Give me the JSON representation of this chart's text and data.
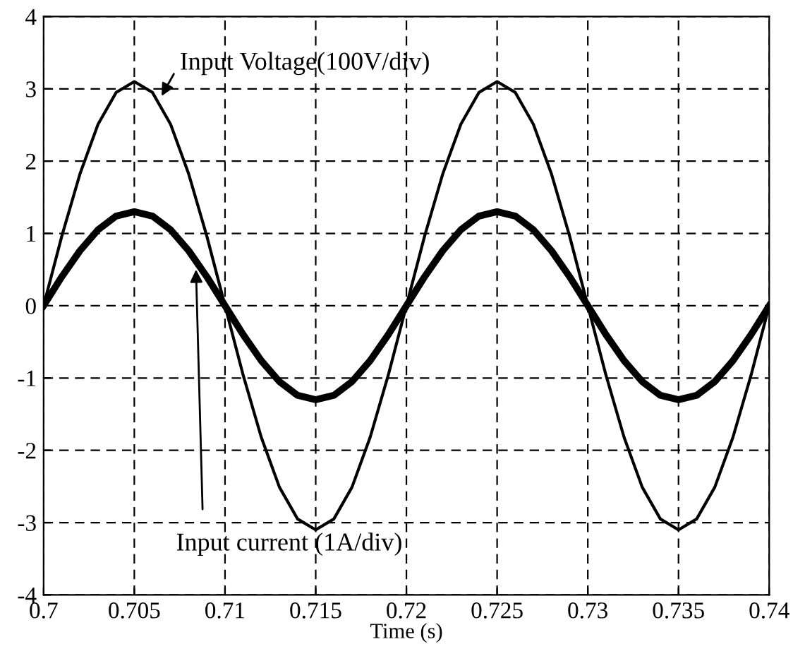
{
  "chart_data": {
    "type": "line",
    "x": [
      0.7,
      0.701,
      0.702,
      0.703,
      0.704,
      0.705,
      0.706,
      0.707,
      0.708,
      0.709,
      0.71,
      0.711,
      0.712,
      0.713,
      0.714,
      0.715,
      0.716,
      0.717,
      0.718,
      0.719,
      0.72,
      0.721,
      0.722,
      0.723,
      0.724,
      0.725,
      0.726,
      0.727,
      0.728,
      0.729,
      0.73,
      0.731,
      0.732,
      0.733,
      0.734,
      0.735,
      0.736,
      0.737,
      0.738,
      0.739,
      0.74
    ],
    "series": [
      {
        "color": "#000000",
        "values": [
          0,
          0.96,
          1.82,
          2.51,
          2.95,
          3.1,
          2.95,
          2.51,
          1.82,
          0.96,
          0,
          -0.96,
          -1.82,
          -2.51,
          -2.95,
          -3.1,
          -2.95,
          -2.51,
          -1.82,
          -0.96,
          0,
          0.96,
          1.82,
          2.51,
          2.95,
          3.1,
          2.95,
          2.51,
          1.82,
          0.96,
          0,
          -0.96,
          -1.82,
          -2.51,
          -2.95,
          -3.1,
          -2.95,
          -2.51,
          -1.82,
          -0.96,
          0
        ]
      },
      {
        "color": "#000000",
        "values": [
          0,
          0.4,
          0.76,
          1.05,
          1.24,
          1.3,
          1.24,
          1.05,
          0.76,
          0.4,
          0,
          -0.4,
          -0.76,
          -1.05,
          -1.24,
          -1.3,
          -1.24,
          -1.05,
          -0.76,
          -0.4,
          0,
          0.4,
          0.76,
          1.05,
          1.24,
          1.3,
          1.24,
          1.05,
          0.76,
          0.4,
          0,
          -0.4,
          -0.76,
          -1.05,
          -1.24,
          -1.3,
          -1.24,
          -1.05,
          -0.76,
          -0.4,
          0
        ]
      }
    ],
    "xlabel": "Time (s)",
    "annotations": [
      {
        "text": "Input Voltage(100V/div)",
        "x": 0.7065,
        "y": 2.9
      },
      {
        "text": "Input current (1A/div)",
        "x": 0.7084,
        "y": 0.5
      }
    ],
    "xlim": [
      0.7,
      0.74
    ],
    "ylim": [
      -4,
      4
    ],
    "xticks": [
      0.7,
      0.705,
      0.71,
      0.715,
      0.72,
      0.725,
      0.73,
      0.735,
      0.74
    ],
    "yticks": [
      -4,
      -3,
      -2,
      -1,
      0,
      1,
      2,
      3,
      4
    ],
    "grid": true,
    "line_style": "solid",
    "legend": false
  }
}
